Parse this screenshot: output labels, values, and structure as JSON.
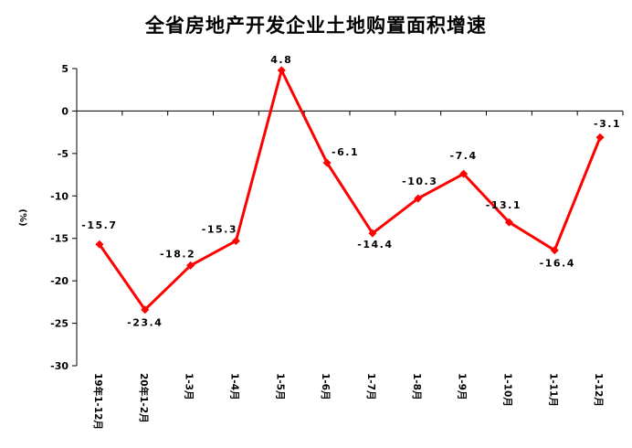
{
  "chart_data": {
    "type": "line",
    "title": "全省房地产开发企业土地购置面积增速",
    "ylabel": "(%)",
    "xlabel": "",
    "categories": [
      "19年1-12月",
      "20年1-2月",
      "1-3月",
      "1-4月",
      "1-5月",
      "1-6月",
      "1-7月",
      "1-8月",
      "1-9月",
      "1-10月",
      "1-11月",
      "1-12月"
    ],
    "series": [
      {
        "values": [
          -15.7,
          -23.4,
          -18.2,
          -15.3,
          4.8,
          -6.1,
          -14.4,
          -10.3,
          -7.4,
          -13.1,
          -16.4,
          -3.1
        ],
        "data_labels": [
          "-15.7",
          "-23.4",
          "-18.2",
          "-15.3",
          "4.8",
          "-6.1",
          "-14.4",
          "-10.3",
          "-7.4",
          "-13.1",
          "-16.4",
          "-3.1"
        ]
      }
    ],
    "ylim": [
      -30,
      5
    ],
    "yticks": [
      5,
      0,
      -5,
      -10,
      -15,
      -20,
      -25,
      -30
    ],
    "grid": false,
    "legend": "none",
    "line_color": "#ff0000",
    "marker": "diamond"
  }
}
